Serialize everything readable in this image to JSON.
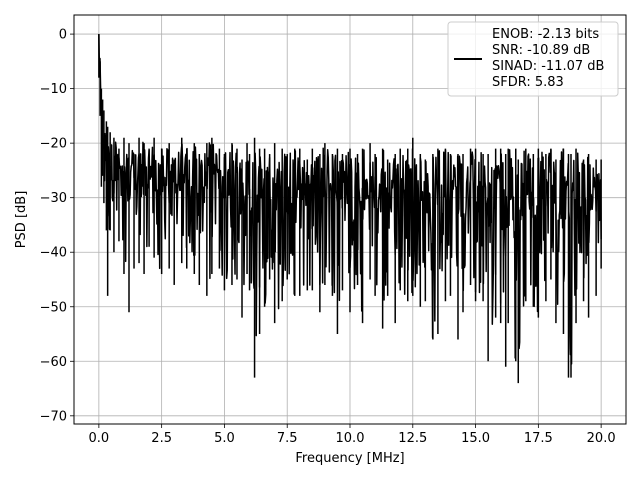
{
  "chart_data": {
    "type": "line",
    "title": "",
    "xlabel": "Frequency [MHz]",
    "ylabel": "PSD [dB]",
    "xlim": [
      -0.99,
      20.99
    ],
    "ylim": [
      -71.5,
      3.5
    ],
    "xticks": [
      0.0,
      2.5,
      5.0,
      7.5,
      10.0,
      12.5,
      15.0,
      17.5,
      20.0
    ],
    "xtick_labels": [
      "0.0",
      "2.5",
      "5.0",
      "7.5",
      "10.0",
      "12.5",
      "15.0",
      "17.5",
      "20.0"
    ],
    "yticks": [
      0,
      -10,
      -20,
      -30,
      -40,
      -50,
      -60,
      -70
    ],
    "ytick_labels": [
      "0",
      "−10",
      "−20",
      "−30",
      "−40",
      "−50",
      "−60",
      "−70"
    ],
    "grid": true,
    "legend_position": "top-right",
    "legend": {
      "lines": [
        "ENOB: -2.13 bits",
        "SNR: -10.89 dB",
        "SINAD: -11.07 dB",
        "SFDR: 5.83"
      ]
    },
    "series": [
      {
        "color": "#000000",
        "x": [
          0.0,
          0.05,
          0.1,
          0.15,
          0.2,
          0.3,
          0.35,
          0.45,
          0.6,
          0.8,
          1.0,
          1.2,
          1.4,
          1.6,
          1.8,
          2.0,
          2.2,
          2.5,
          2.8,
          3.0,
          3.3,
          3.5,
          3.8,
          4.0,
          4.3,
          4.5,
          4.8,
          5.0,
          5.3,
          5.5,
          5.7,
          5.9,
          6.0,
          6.2,
          6.4,
          6.6,
          6.8,
          7.0,
          7.3,
          7.5,
          7.8,
          8.0,
          8.3,
          8.5,
          8.8,
          9.0,
          9.3,
          9.5,
          9.7,
          10.0,
          10.3,
          10.5,
          10.8,
          11.0,
          11.3,
          11.5,
          11.8,
          12.0,
          12.3,
          12.5,
          12.8,
          13.0,
          13.3,
          13.5,
          13.8,
          14.0,
          14.3,
          14.5,
          14.8,
          15.0,
          15.3,
          15.5,
          15.8,
          16.0,
          16.2,
          16.3,
          16.6,
          16.7,
          17.0,
          17.3,
          17.5,
          17.8,
          18.0,
          18.2,
          18.5,
          18.7,
          18.8,
          19.0,
          19.3,
          19.5,
          19.8,
          20.0
        ],
        "upper": [
          0,
          -5,
          -10,
          -12,
          -14,
          -16,
          -17,
          -18,
          -19,
          -21,
          -19,
          -20,
          -22,
          -19,
          -20,
          -21,
          -19,
          -21,
          -20,
          -23,
          -19,
          -21,
          -20,
          -22,
          -20,
          -19,
          -21,
          -22,
          -20,
          -21,
          -23,
          -20,
          -22,
          -19,
          -21,
          -21,
          -22,
          -20,
          -21,
          -22,
          -21,
          -21,
          -23,
          -21,
          -22,
          -20,
          -22,
          -21,
          -22,
          -21,
          -22,
          -21,
          -20,
          -22,
          -21,
          -23,
          -22,
          -21,
          -21,
          -19,
          -22,
          -23,
          -22,
          -21,
          -21,
          -22,
          -22,
          -22,
          -21,
          -21,
          -22,
          -22,
          -21,
          -21,
          -22,
          -21,
          -21,
          -23,
          -21,
          -22,
          -21,
          -22,
          -21,
          -23,
          -21,
          -22,
          -22,
          -21,
          -23,
          -22,
          -23,
          -23
        ],
        "lower": [
          -8,
          -15,
          -28,
          -26,
          -31,
          -36,
          -48,
          -36,
          -40,
          -38,
          -44,
          -51,
          -43,
          -42,
          -44,
          -39,
          -41,
          -44,
          -43,
          -46,
          -42,
          -43,
          -44,
          -46,
          -48,
          -44,
          -43,
          -47,
          -46,
          -45,
          -52,
          -44,
          -47,
          -63,
          -55,
          -50,
          -45,
          -53,
          -49,
          -45,
          -48,
          -48,
          -47,
          -47,
          -51,
          -46,
          -48,
          -55,
          -47,
          -51,
          -46,
          -53,
          -45,
          -48,
          -54,
          -48,
          -53,
          -47,
          -49,
          -48,
          -50,
          -49,
          -56,
          -55,
          -49,
          -48,
          -56,
          -51,
          -46,
          -49,
          -49,
          -60,
          -52,
          -53,
          -61,
          -53,
          -60,
          -64,
          -49,
          -50,
          -52,
          -49,
          -45,
          -53,
          -55,
          -63,
          -63,
          -53,
          -49,
          -52,
          -48,
          -43
        ]
      }
    ]
  }
}
